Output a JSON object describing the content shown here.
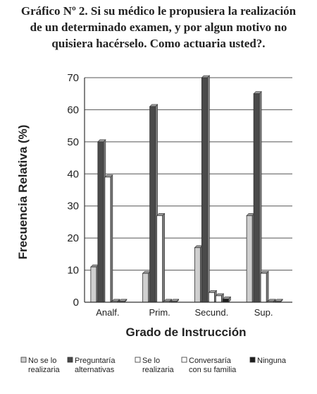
{
  "title": {
    "line1": "Gráfico Nº 2. Si su médico le propusiera la realización",
    "line2": "de un determinado examen, y por algun motivo no",
    "line3": "quisiera hacérselo. Como actuaria usted?."
  },
  "chart_data": {
    "type": "bar",
    "xlabel": "Grado de Instrucción",
    "ylabel": "Frecuencia Relativa (%)",
    "ylim": [
      0,
      70
    ],
    "yticks": [
      0,
      10,
      20,
      30,
      40,
      50,
      60,
      70
    ],
    "grid": true,
    "legend_position": "bottom",
    "categories": [
      "Analf.",
      "Prim.",
      "Secund.",
      "Sup."
    ],
    "series": [
      {
        "name": "No se lo realizaría",
        "label_lines": [
          "No se lo",
          "realizaria"
        ],
        "values": [
          11,
          9,
          17,
          27
        ],
        "color": "#cfcfcf"
      },
      {
        "name": "Preguntaría alternativas",
        "label_lines": [
          "Preguntaría",
          "alternativas"
        ],
        "values": [
          50,
          61,
          70,
          65
        ],
        "color": "#4a4a4a"
      },
      {
        "name": "Se lo realizaría",
        "label_lines": [
          "Se lo",
          "realizaria"
        ],
        "values": [
          39,
          27,
          3,
          9
        ],
        "color": "#ffffff"
      },
      {
        "name": "Conversaría con su familia",
        "label_lines": [
          "Conversaría",
          "con su familia"
        ],
        "values": [
          0,
          0,
          2,
          0
        ],
        "color": "#ffffff"
      },
      {
        "name": "Ninguna",
        "label_lines": [
          "Ninguna"
        ],
        "values": [
          0,
          0,
          1,
          0
        ],
        "color": "#1e1e1e"
      }
    ]
  }
}
